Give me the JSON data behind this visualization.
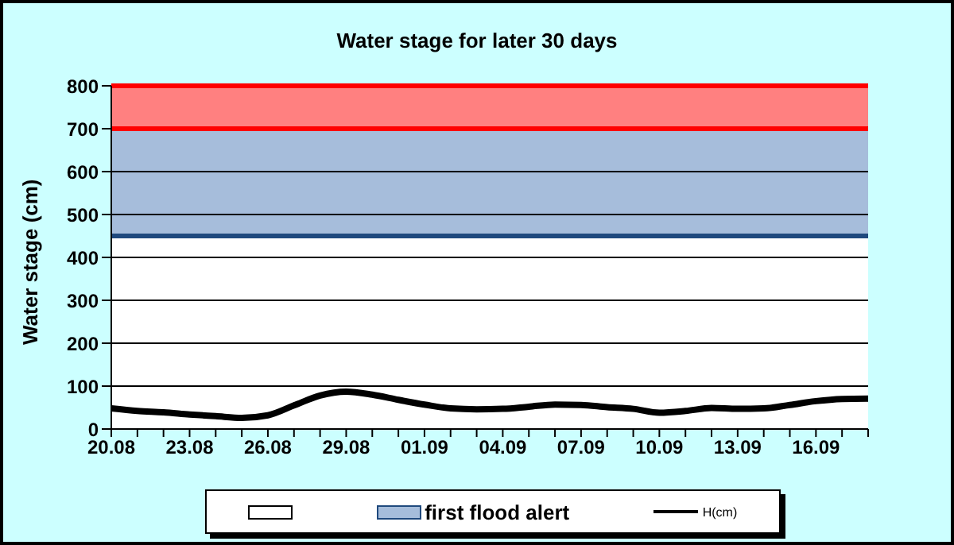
{
  "chart_data": {
    "type": "line",
    "title": "Water stage for later 30 days",
    "ylabel": "Water stage (cm)",
    "x": [
      "--08-20",
      "--08-21",
      "--08-22",
      "--08-23",
      "--08-24",
      "--08-25",
      "--08-26",
      "--08-27",
      "--08-28",
      "--08-29",
      "--08-30",
      "--08-31",
      "--09-01",
      "--09-02",
      "--09-03",
      "--09-04",
      "--09-05",
      "--09-06",
      "--09-07",
      "--09-08",
      "--09-09",
      "--09-10",
      "--09-11",
      "--09-12",
      "--09-13",
      "--09-14",
      "--09-15",
      "--09-16",
      "--09-17",
      "--09-18"
    ],
    "series": [
      {
        "name": "H(cm)",
        "color": "#000000",
        "values": [
          48,
          42,
          39,
          34,
          30,
          26,
          32,
          55,
          78,
          87,
          80,
          68,
          57,
          48,
          46,
          47,
          52,
          57,
          56,
          51,
          47,
          38,
          42,
          49,
          47,
          48,
          56,
          65,
          70,
          71
        ]
      }
    ],
    "xlim": [
      "--08-20",
      "--09-18"
    ],
    "xticks": [
      {
        "value": "--08-20",
        "label": "20.08"
      },
      {
        "value": "--08-21",
        "label": null
      },
      {
        "value": "--08-22",
        "label": null
      },
      {
        "value": "--08-23",
        "label": "23.08"
      },
      {
        "value": "--08-24",
        "label": null
      },
      {
        "value": "--08-25",
        "label": null
      },
      {
        "value": "--08-26",
        "label": "26.08"
      },
      {
        "value": "--08-27",
        "label": null
      },
      {
        "value": "--08-28",
        "label": null
      },
      {
        "value": "--08-29",
        "label": "29.08"
      },
      {
        "value": "--08-30",
        "label": null
      },
      {
        "value": "--08-31",
        "label": null
      },
      {
        "value": "--09-01",
        "label": "01.09"
      },
      {
        "value": "--09-02",
        "label": null
      },
      {
        "value": "--09-03",
        "label": null
      },
      {
        "value": "--09-04",
        "label": "04.09"
      },
      {
        "value": "--09-05",
        "label": null
      },
      {
        "value": "--09-06",
        "label": null
      },
      {
        "value": "--09-07",
        "label": "07.09"
      },
      {
        "value": "--09-08",
        "label": null
      },
      {
        "value": "--09-09",
        "label": null
      },
      {
        "value": "--09-10",
        "label": "10.09"
      },
      {
        "value": "--09-11",
        "label": null
      },
      {
        "value": "--09-12",
        "label": null
      },
      {
        "value": "--09-13",
        "label": "13.09"
      },
      {
        "value": "--09-14",
        "label": null
      },
      {
        "value": "--09-15",
        "label": null
      },
      {
        "value": "--09-16",
        "label": "16.09"
      },
      {
        "value": "--09-17",
        "label": null
      },
      {
        "value": "--09-18",
        "label": null
      }
    ],
    "ylim": [
      0,
      800
    ],
    "yticks": [
      0,
      100,
      200,
      300,
      400,
      500,
      600,
      700,
      800
    ],
    "bands": [
      {
        "axis": "y",
        "from": 0,
        "to": 450,
        "color": "#ffffff"
      },
      {
        "axis": "y",
        "from": 450,
        "to": 700,
        "label": "first flood alert",
        "color": "#a6bddb"
      },
      {
        "axis": "y",
        "from": 700,
        "to": 800,
        "color": "#ff8080"
      }
    ],
    "ref_lines": [
      {
        "axis": "y",
        "value": 450,
        "color": "#1f497d"
      },
      {
        "axis": "y",
        "value": 700,
        "color": "#ff0000"
      },
      {
        "axis": "y",
        "value": 800,
        "color": "#ff0000"
      }
    ],
    "grid": "y",
    "legend": "bottom",
    "marker": "none",
    "line_style": "solid"
  }
}
